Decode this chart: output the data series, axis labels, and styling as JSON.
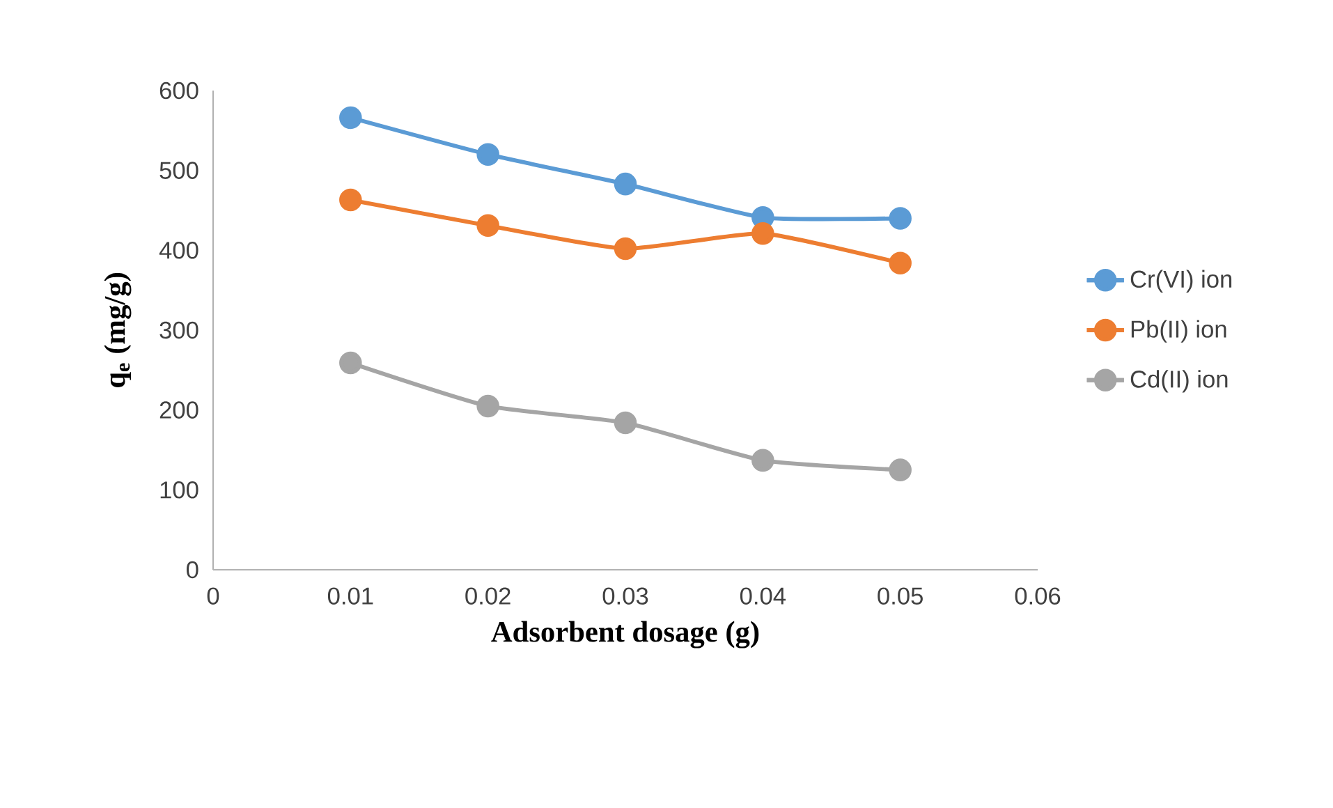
{
  "chart_data": {
    "type": "line",
    "xlabel": "Adsorbent dosage (g)",
    "ylabel": "q$_{e}$ (mg/g)",
    "x": [
      0.01,
      0.02,
      0.03,
      0.04,
      0.05
    ],
    "series": [
      {
        "name": "Cr(VI) ion",
        "color": "#5b9bd5",
        "values": [
          566,
          520,
          483,
          441,
          440
        ]
      },
      {
        "name": "Pb(II) ion",
        "color": "#ed7d31",
        "values": [
          463,
          431,
          402,
          421,
          384
        ]
      },
      {
        "name": "Cd(II) ion",
        "color": "#a5a5a5",
        "values": [
          259,
          205,
          184,
          137,
          125
        ]
      }
    ],
    "xlim": [
      0,
      0.06
    ],
    "xticks": [
      0,
      0.01,
      0.02,
      0.03,
      0.04,
      0.05,
      0.06
    ],
    "ylim": [
      0,
      600
    ],
    "yticks": [
      0,
      100,
      200,
      300,
      400,
      500,
      600
    ],
    "grid": false,
    "legend": "right",
    "marker": "circle",
    "line_style": "solid"
  }
}
